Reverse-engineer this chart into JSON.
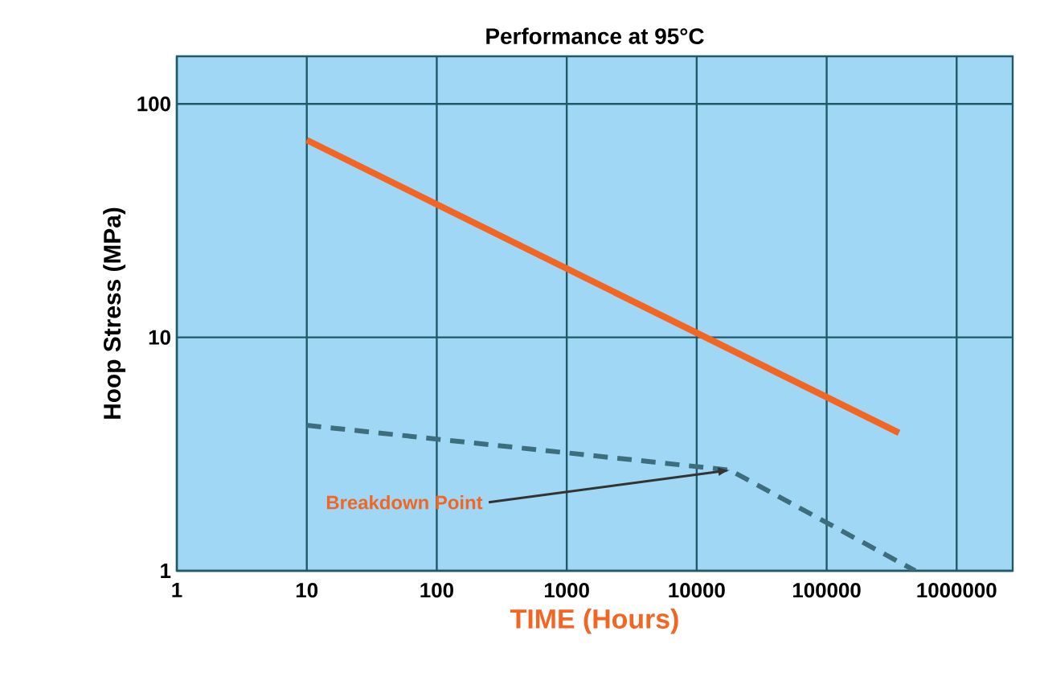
{
  "chart_data": {
    "type": "line",
    "title": "Performance at 95°C",
    "xlabel": "TIME (Hours)",
    "ylabel": "Hoop Stress (MPa)",
    "log": "xy",
    "xlim": [
      1,
      2700000
    ],
    "xticks": [
      1,
      10,
      100,
      1000,
      10000,
      100000,
      1000000
    ],
    "ylim": [
      1,
      160
    ],
    "yticks": [
      1,
      10,
      100
    ],
    "grid": true,
    "marker": "none",
    "annotations": [
      {
        "text": "Breakdown Point",
        "x": 18000,
        "y": 2.7
      }
    ],
    "series": [
      {
        "color": "#f26522",
        "line_style": "solid",
        "x": [
          10,
          360000
        ],
        "values": [
          70,
          3.9
        ]
      },
      {
        "color": "#3d6e7e",
        "line_style": "dashed",
        "x": [
          10,
          18000,
          480000
        ],
        "values": [
          4.2,
          2.7,
          1.0
        ]
      }
    ]
  }
}
